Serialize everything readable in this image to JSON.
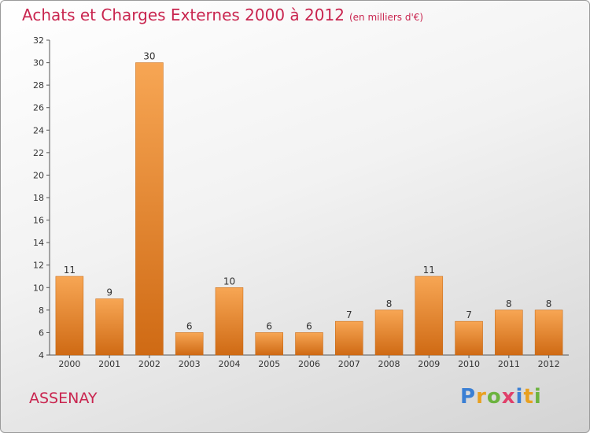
{
  "title": "Achats et Charges Externes 2000 à 2012",
  "subtitle": "(en milliers d'€)",
  "commune": "ASSENAY",
  "logo": {
    "letters": [
      "P",
      "r",
      "o",
      "x",
      "i",
      "t",
      "i"
    ],
    "colors": [
      "#3a7fd4",
      "#e8a020",
      "#6cb33f",
      "#e0406a",
      "#3a7fd4",
      "#e8a020",
      "#6cb33f"
    ]
  },
  "colors": {
    "title": "#c9254f",
    "bar_light": "#f7a654",
    "bar_dark": "#cf6a14"
  },
  "chart_data": {
    "type": "bar",
    "title": "Achats et Charges Externes 2000 à 2012",
    "subtitle": "(en milliers d'€)",
    "categories": [
      "2000",
      "2001",
      "2002",
      "2003",
      "2004",
      "2005",
      "2006",
      "2007",
      "2008",
      "2009",
      "2010",
      "2011",
      "2012"
    ],
    "values": [
      11,
      9,
      30,
      6,
      10,
      6,
      6,
      7,
      8,
      11,
      7,
      8,
      8
    ],
    "ylim": [
      4,
      32
    ],
    "yticks": [
      4,
      6,
      8,
      10,
      12,
      14,
      16,
      18,
      20,
      22,
      24,
      26,
      28,
      30,
      32
    ],
    "xlabel": "",
    "ylabel": "",
    "grid": false,
    "legend": "none"
  }
}
